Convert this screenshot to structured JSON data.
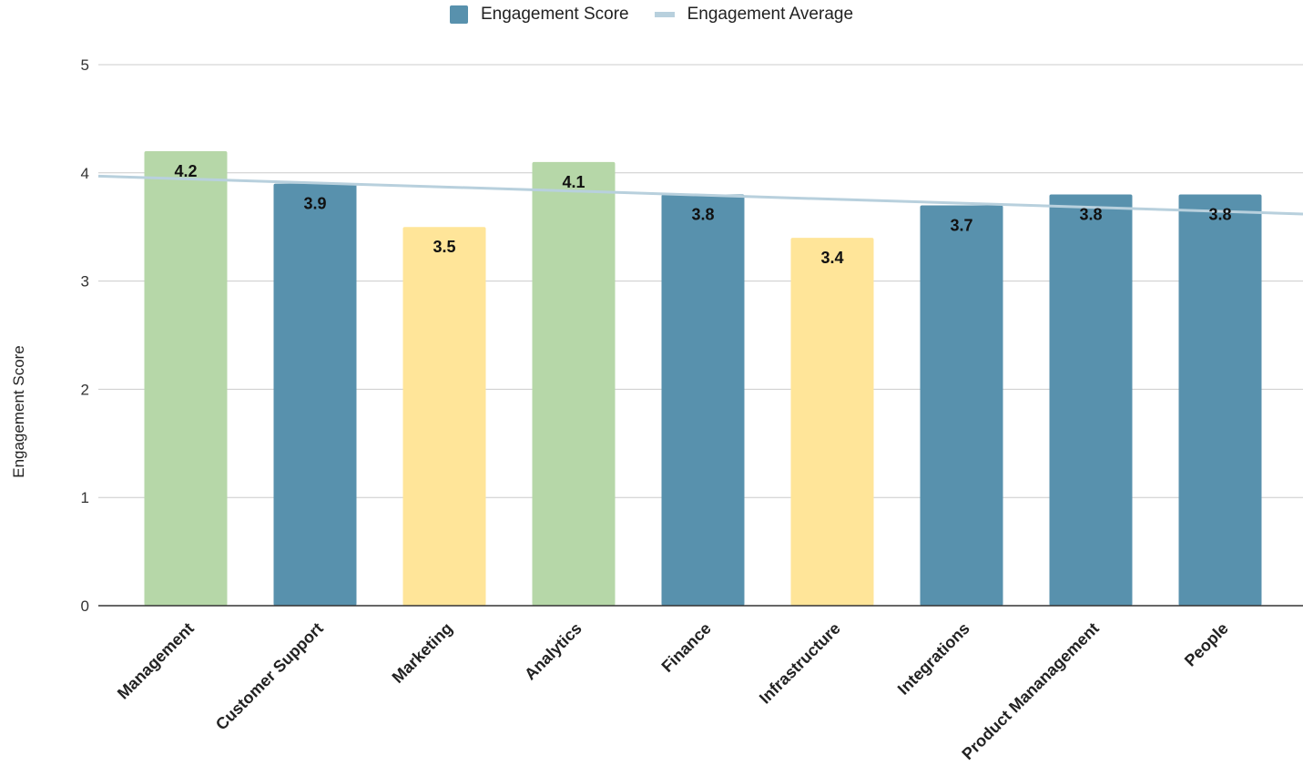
{
  "chart_data": {
    "type": "bar",
    "categories": [
      "Management",
      "Customer Support",
      "Marketing",
      "Analytics",
      "Finance",
      "Infrastructure",
      "Integrations",
      "Product Mananagement",
      "People"
    ],
    "series": [
      {
        "name": "Engagement Score",
        "values": [
          4.2,
          3.9,
          3.5,
          4.1,
          3.8,
          3.4,
          3.7,
          3.8,
          3.8
        ]
      },
      {
        "name": "Engagement Average",
        "type": "line",
        "start": 3.97,
        "end": 3.62
      }
    ],
    "data_labels": [
      "4.2",
      "3.9",
      "3.5",
      "4.1",
      "3.8",
      "3.4",
      "3.7",
      "3.8",
      "3.8"
    ],
    "bar_colors": [
      "#b6d7a8",
      "#5891ad",
      "#ffe599",
      "#b6d7a8",
      "#5891ad",
      "#ffe599",
      "#5891ad",
      "#5891ad",
      "#5891ad"
    ],
    "ylabel": "Engagement Score",
    "xlabel": "",
    "ylim": [
      0,
      5
    ],
    "yticks": [
      "0",
      "1",
      "2",
      "3",
      "4",
      "5"
    ],
    "grid": true,
    "legend_position": "top-center",
    "colors": {
      "score": "#5891ad",
      "average": "#b8d0dd",
      "grid": "#cccccc",
      "axis": "#333333"
    }
  }
}
